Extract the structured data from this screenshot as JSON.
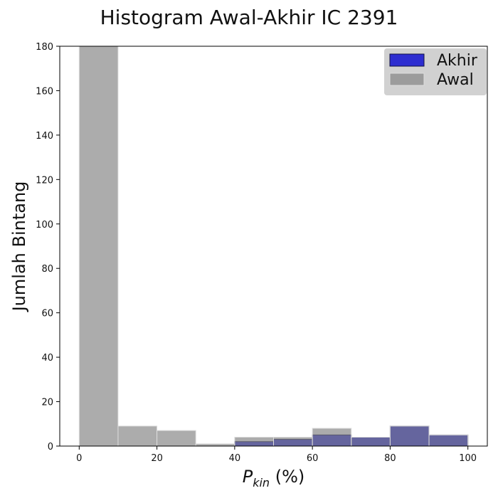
{
  "chart_data": {
    "type": "bar",
    "title": "Histogram Awal-Akhir IC 2391",
    "xlabel_main": "P",
    "xlabel_sub": "kin",
    "xlabel_suffix": " (%)",
    "ylabel": "Jumlah Bintang",
    "xlim": [
      -5,
      105
    ],
    "ylim": [
      0,
      180
    ],
    "xticks": [
      0,
      20,
      40,
      60,
      80,
      100
    ],
    "yticks": [
      0,
      20,
      40,
      60,
      80,
      100,
      120,
      140,
      160,
      180
    ],
    "bin_edges": [
      0,
      10,
      20,
      30,
      40,
      50,
      60,
      70,
      80,
      90,
      100
    ],
    "series": [
      {
        "name": "Akhir",
        "color": "#1010d0",
        "edge": "#111144",
        "opacity": 0.85,
        "values": [
          0,
          0,
          0,
          0,
          2,
          3,
          5,
          4,
          9,
          5
        ]
      },
      {
        "name": "Awal",
        "color": "#808080",
        "edge": "#dddddd",
        "opacity": 0.65,
        "values": [
          180,
          9,
          7,
          1,
          4,
          4,
          8,
          4,
          9,
          5
        ]
      }
    ],
    "legend_position": "top-right",
    "grid": false
  }
}
